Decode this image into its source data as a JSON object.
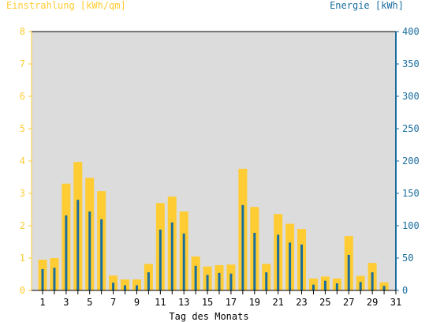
{
  "chart_data": {
    "type": "bar",
    "ylabel_left": "Einstrahlung [kWh/qm]",
    "ylabel_right": "Energie [kWh]",
    "xlabel": "Tag des Monats",
    "ylim_left": [
      0,
      8
    ],
    "ylim_right": [
      0,
      400
    ],
    "yticks_left": [
      "0",
      "1",
      "2",
      "3",
      "4",
      "5",
      "6",
      "7",
      "8"
    ],
    "yticks_right": [
      "0",
      "50",
      "100",
      "150",
      "200",
      "250",
      "300",
      "350",
      "400"
    ],
    "xtick_labels": [
      "1",
      "3",
      "5",
      "7",
      "9",
      "11",
      "13",
      "15",
      "17",
      "19",
      "21",
      "23",
      "25",
      "27",
      "29",
      "31"
    ],
    "days": [
      1,
      2,
      3,
      4,
      5,
      6,
      7,
      8,
      9,
      10,
      11,
      12,
      13,
      14,
      15,
      16,
      17,
      18,
      19,
      20,
      21,
      22,
      23,
      24,
      25,
      26,
      27,
      28,
      29,
      30,
      31
    ],
    "series": [
      {
        "name": "Einstrahlung [kWh/qm]",
        "axis": "left",
        "values": [
          0.95,
          1.0,
          3.3,
          3.97,
          3.48,
          3.07,
          0.46,
          0.34,
          0.34,
          0.82,
          2.7,
          2.9,
          2.44,
          1.05,
          0.74,
          0.78,
          0.8,
          3.76,
          2.58,
          0.82,
          2.36,
          2.06,
          1.9,
          0.37,
          0.43,
          0.37,
          1.68,
          0.45,
          0.85,
          0.25,
          0
        ]
      },
      {
        "name": "Energie [kWh]",
        "axis": "right",
        "values": [
          33,
          35,
          116,
          140,
          122,
          110,
          12,
          8,
          8,
          28,
          94,
          105,
          88,
          38,
          24,
          27,
          26,
          132,
          89,
          28,
          86,
          74,
          71,
          9,
          15,
          11,
          55,
          13,
          28,
          7,
          0
        ]
      }
    ],
    "colors": {
      "plot_background": "#dcdcdc",
      "einstrahlung_bar": "#ffcc33",
      "energie_bar": "#1a6e9e",
      "left_axis": "#ffcc33",
      "right_axis": "#1a6e9e",
      "grid": "#bbbbbb"
    },
    "grid": false
  }
}
